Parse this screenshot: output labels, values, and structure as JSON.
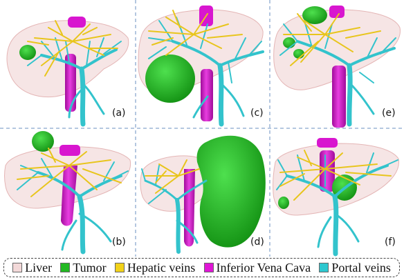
{
  "panels": [
    {
      "id": "a",
      "label": "(a)"
    },
    {
      "id": "c",
      "label": "(c)"
    },
    {
      "id": "e",
      "label": "(e)"
    },
    {
      "id": "b",
      "label": "(b)"
    },
    {
      "id": "d",
      "label": "(d)"
    },
    {
      "id": "f",
      "label": "(f)"
    }
  ],
  "legend": {
    "items": [
      {
        "label": "Liver",
        "color": "#f3d9d9"
      },
      {
        "label": "Tumor",
        "color": "#22b822"
      },
      {
        "label": "Hepatic veins",
        "color": "#f2d21a"
      },
      {
        "label": "Inferior Vena Cava",
        "color": "#e015d6"
      },
      {
        "label": "Portal veins",
        "color": "#2ec7cf"
      }
    ]
  },
  "colors": {
    "liver": "#f5e0e0",
    "liver_edge": "#e8b8b8",
    "tumor": "#1fbf1f",
    "tumor_dark": "#149114",
    "hepatic": "#e8c51c",
    "ivc": "#d816cf",
    "portal": "#33c3cc",
    "divider": "#6a8fc0"
  }
}
